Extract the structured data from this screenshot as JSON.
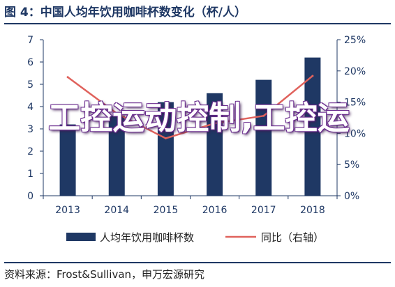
{
  "title": "图 4：中国人均年饮用咖啡杯数变化（杯/人）",
  "source": "资料来源：Frost&Sullivan，申万宏源研究",
  "overlay_text": "工控运动控制,工控运",
  "chart_data": {
    "type": "bar+line",
    "categories": [
      "2013",
      "2014",
      "2015",
      "2016",
      "2017",
      "2018"
    ],
    "series": [
      {
        "name": "人均年饮用咖啡杯数",
        "type": "bar",
        "axis": "left",
        "color": "#1f3864",
        "values": [
          3.2,
          3.6,
          4.2,
          4.6,
          5.2,
          6.2
        ]
      },
      {
        "name": "同比（右轴）",
        "type": "line",
        "axis": "right",
        "color": "#e0625c",
        "values": [
          19.0,
          13.2,
          9.2,
          11.6,
          12.8,
          19.2
        ]
      }
    ],
    "y_left": {
      "min": 0,
      "max": 7,
      "ticks": [
        "0",
        "1",
        "2",
        "3",
        "4",
        "5",
        "6",
        "7"
      ]
    },
    "y_right": {
      "min": 0,
      "max": 25,
      "ticks": [
        "0%",
        "5%",
        "10%",
        "15%",
        "20%",
        "25%"
      ]
    },
    "legend": {
      "position": "bottom",
      "labels": [
        "人均年饮用咖啡杯数",
        "同比（右轴）"
      ]
    },
    "grid": false
  }
}
